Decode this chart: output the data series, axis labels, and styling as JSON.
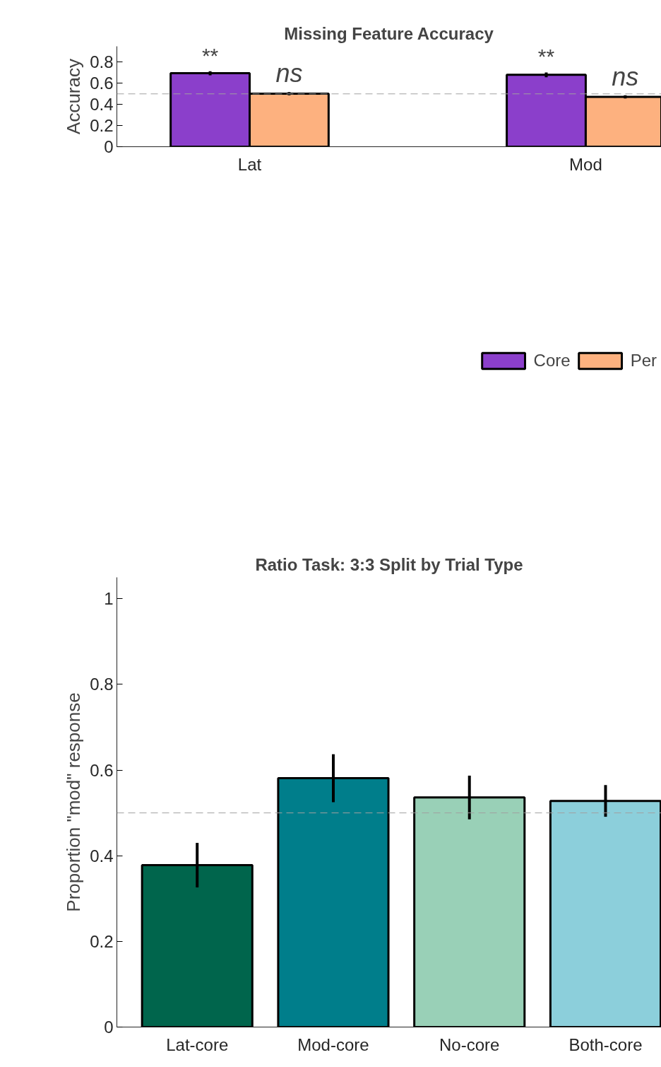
{
  "chart_data": [
    {
      "type": "bar",
      "title": "Missing Feature Accuracy",
      "ylabel": "Accuracy",
      "categories": [
        "Lat",
        "Mod"
      ],
      "series": [
        {
          "name": "Core",
          "color": "#8b3fcb",
          "values": [
            0.695,
            0.68
          ],
          "errors": [
            0.02,
            0.023
          ]
        },
        {
          "name": "Per",
          "color": "#fdb17f",
          "values": [
            0.502,
            0.472
          ],
          "errors": [
            0.015,
            0.015
          ]
        }
      ],
      "ylim": [
        0,
        0.95
      ],
      "yticks": [
        0,
        0.2,
        0.4,
        0.6,
        0.8
      ],
      "grid": false,
      "legend": "bottom",
      "ref_lines": [
        {
          "axis": "y",
          "value": 0.5,
          "label": null,
          "color": "#a0a0a0",
          "line_style": "dashed"
        }
      ],
      "annotations": [
        "**",
        "ns",
        "**",
        "ns"
      ]
    },
    {
      "type": "bar",
      "title": "Ratio Task: 3:3 Split by Trial Type",
      "ylabel": "Proportion \"mod\" response",
      "categories": [
        "Lat-core",
        "Mod-core",
        "No-core",
        "Both-core"
      ],
      "values": [
        0.378,
        0.581,
        0.536,
        0.528
      ],
      "errors": [
        0.052,
        0.056,
        0.051,
        0.037
      ],
      "colors": [
        "#00654c",
        "#007e8b",
        "#99d0b7",
        "#8ccfdb"
      ],
      "ylim": [
        0,
        1.05
      ],
      "yticks": [
        0,
        0.2,
        0.4,
        0.6,
        0.8,
        1
      ],
      "grid": false,
      "ref_lines": [
        {
          "axis": "y",
          "value": 0.5,
          "label": null,
          "color": "#a0a0a0",
          "line_style": "dashed"
        }
      ]
    }
  ]
}
